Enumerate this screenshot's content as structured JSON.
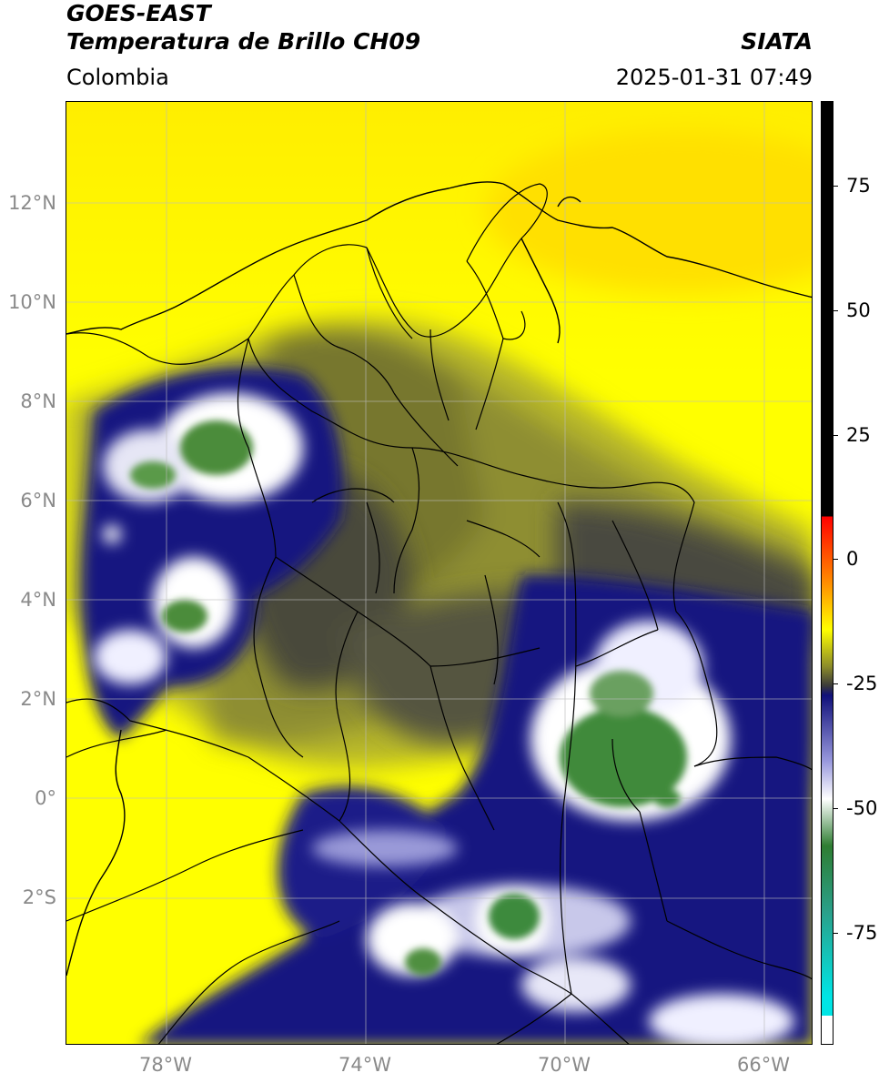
{
  "header": {
    "satellite": "GOES-EAST",
    "product": "Temperatura de Brillo CH09",
    "region": "Colombia",
    "agency": "SIATA",
    "datetime": "2025-01-31 07:49"
  },
  "map": {
    "lat_ticks": [
      "12°N",
      "10°N",
      "8°N",
      "6°N",
      "4°N",
      "2°N",
      "0°",
      "2°S"
    ],
    "lon_ticks": [
      "78°W",
      "74°W",
      "70°W",
      "66°W"
    ],
    "lon_range": [
      -80,
      -65
    ],
    "lat_range": [
      -5,
      14
    ]
  },
  "colorbar": {
    "ticks": [
      "75",
      "50",
      "25",
      "0",
      "-25",
      "-50",
      "-75"
    ],
    "colors": {
      "black": "#000000",
      "red": "#ff0000",
      "orange": "#ff8c00",
      "yellow": "#ffff00",
      "olive": "#8a8a2a",
      "dark_gray": "#3a3a3a",
      "navy": "#10107a",
      "white": "#ffffff",
      "green": "#2e7d32",
      "cyan": "#00e5e5"
    }
  }
}
